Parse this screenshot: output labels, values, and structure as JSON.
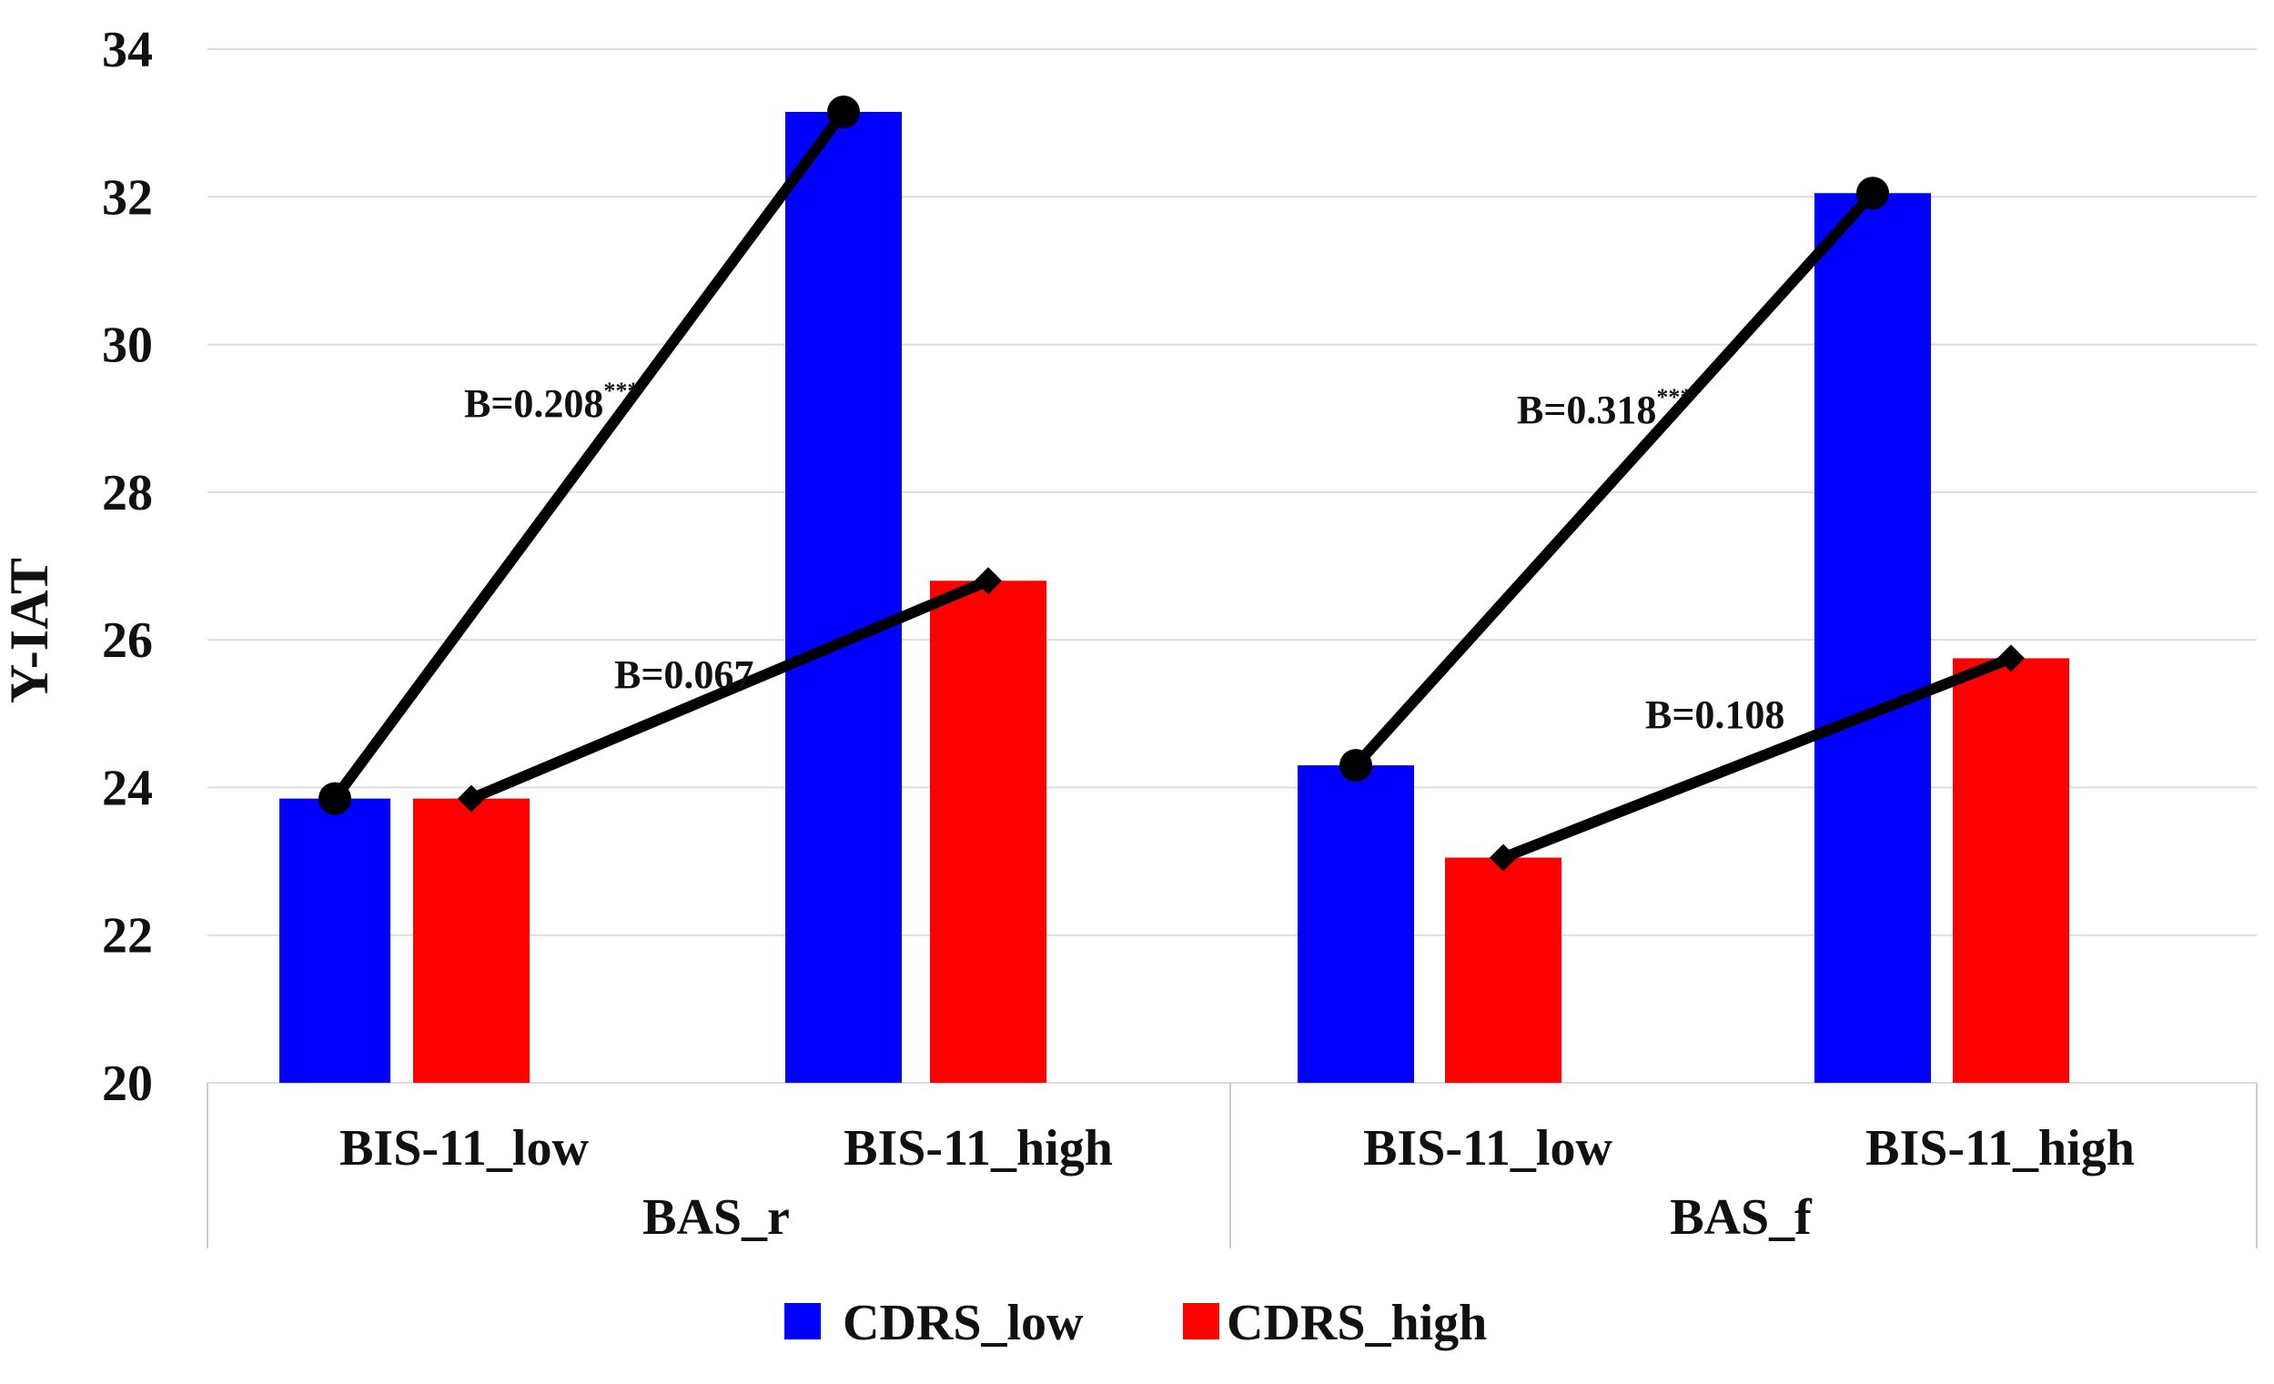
{
  "chart_data": {
    "type": "bar",
    "ylabel": "Y-IAT",
    "ylim": [
      20,
      34
    ],
    "yticks": [
      "20",
      "22",
      "24",
      "26",
      "28",
      "30",
      "32",
      "34"
    ],
    "grid": true,
    "groups": [
      {
        "label": "BAS_r",
        "categories": [
          "BIS-11_low",
          "BIS-11_high"
        ]
      },
      {
        "label": "BAS_f",
        "categories": [
          "BIS-11_low",
          "BIS-11_high"
        ]
      }
    ],
    "series": [
      {
        "name": "CDRS_low",
        "color": "#0000ff",
        "values": [
          23.85,
          33.15,
          24.3,
          32.05
        ]
      },
      {
        "name": "CDRS_high",
        "color": "#ff0000",
        "values": [
          23.85,
          26.8,
          23.05,
          25.75
        ]
      }
    ],
    "slope_lines": [
      {
        "group": 0,
        "series": 0,
        "from": 23.85,
        "to": 33.15,
        "label": "B=0.208",
        "sup": "***",
        "marker": "circle"
      },
      {
        "group": 0,
        "series": 1,
        "from": 23.85,
        "to": 26.8,
        "label": "B=0.067",
        "sup": "",
        "marker": "diamond"
      },
      {
        "group": 1,
        "series": 0,
        "from": 24.3,
        "to": 32.05,
        "label": "B=0.318",
        "sup": "***",
        "marker": "circle"
      },
      {
        "group": 1,
        "series": 1,
        "from": 23.05,
        "to": 25.75,
        "label": "B=0.108",
        "sup": "",
        "marker": "diamond"
      }
    ],
    "legend": {
      "position": "bottom",
      "entries": [
        "CDRS_low",
        "CDRS_high"
      ]
    }
  }
}
